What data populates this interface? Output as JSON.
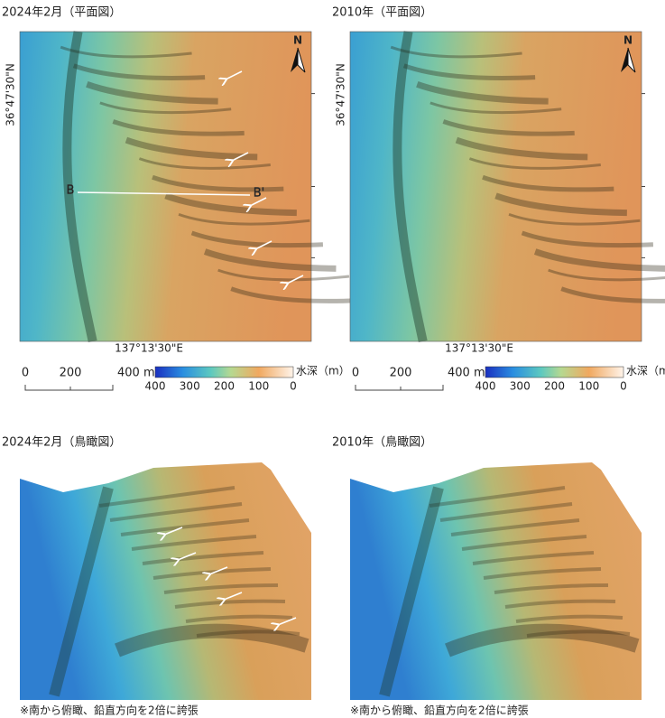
{
  "panels": [
    {
      "title": "2024年2月（平面図）",
      "lat_label": "36°47'30\"N",
      "lon_label": "137°13'30\"E",
      "north": "N",
      "profile": {
        "start": "B",
        "end": "B'"
      },
      "scale_bar": {
        "labels": [
          "0",
          "200",
          "400 m"
        ]
      },
      "colorbar": {
        "title": "水深（m）",
        "labels": [
          "400",
          "300",
          "200",
          "100",
          "0"
        ]
      }
    },
    {
      "title": "2010年（平面図）",
      "lat_label": "36°47'30\"N",
      "lon_label": "137°13'30\"E",
      "north": "N",
      "scale_bar": {
        "labels": [
          "0",
          "200",
          "400 m"
        ]
      },
      "colorbar": {
        "title": "水深（m）",
        "labels": [
          "400",
          "300",
          "200",
          "100",
          "0"
        ]
      }
    }
  ],
  "perspective": [
    {
      "title": "2024年2月（鳥瞰図）",
      "note": "※南から俯瞰、鉛直方向を2倍に誇張"
    },
    {
      "title": "2010年（鳥瞰図）",
      "note": "※南から俯瞰、鉛直方向を2倍に誇張"
    }
  ]
}
